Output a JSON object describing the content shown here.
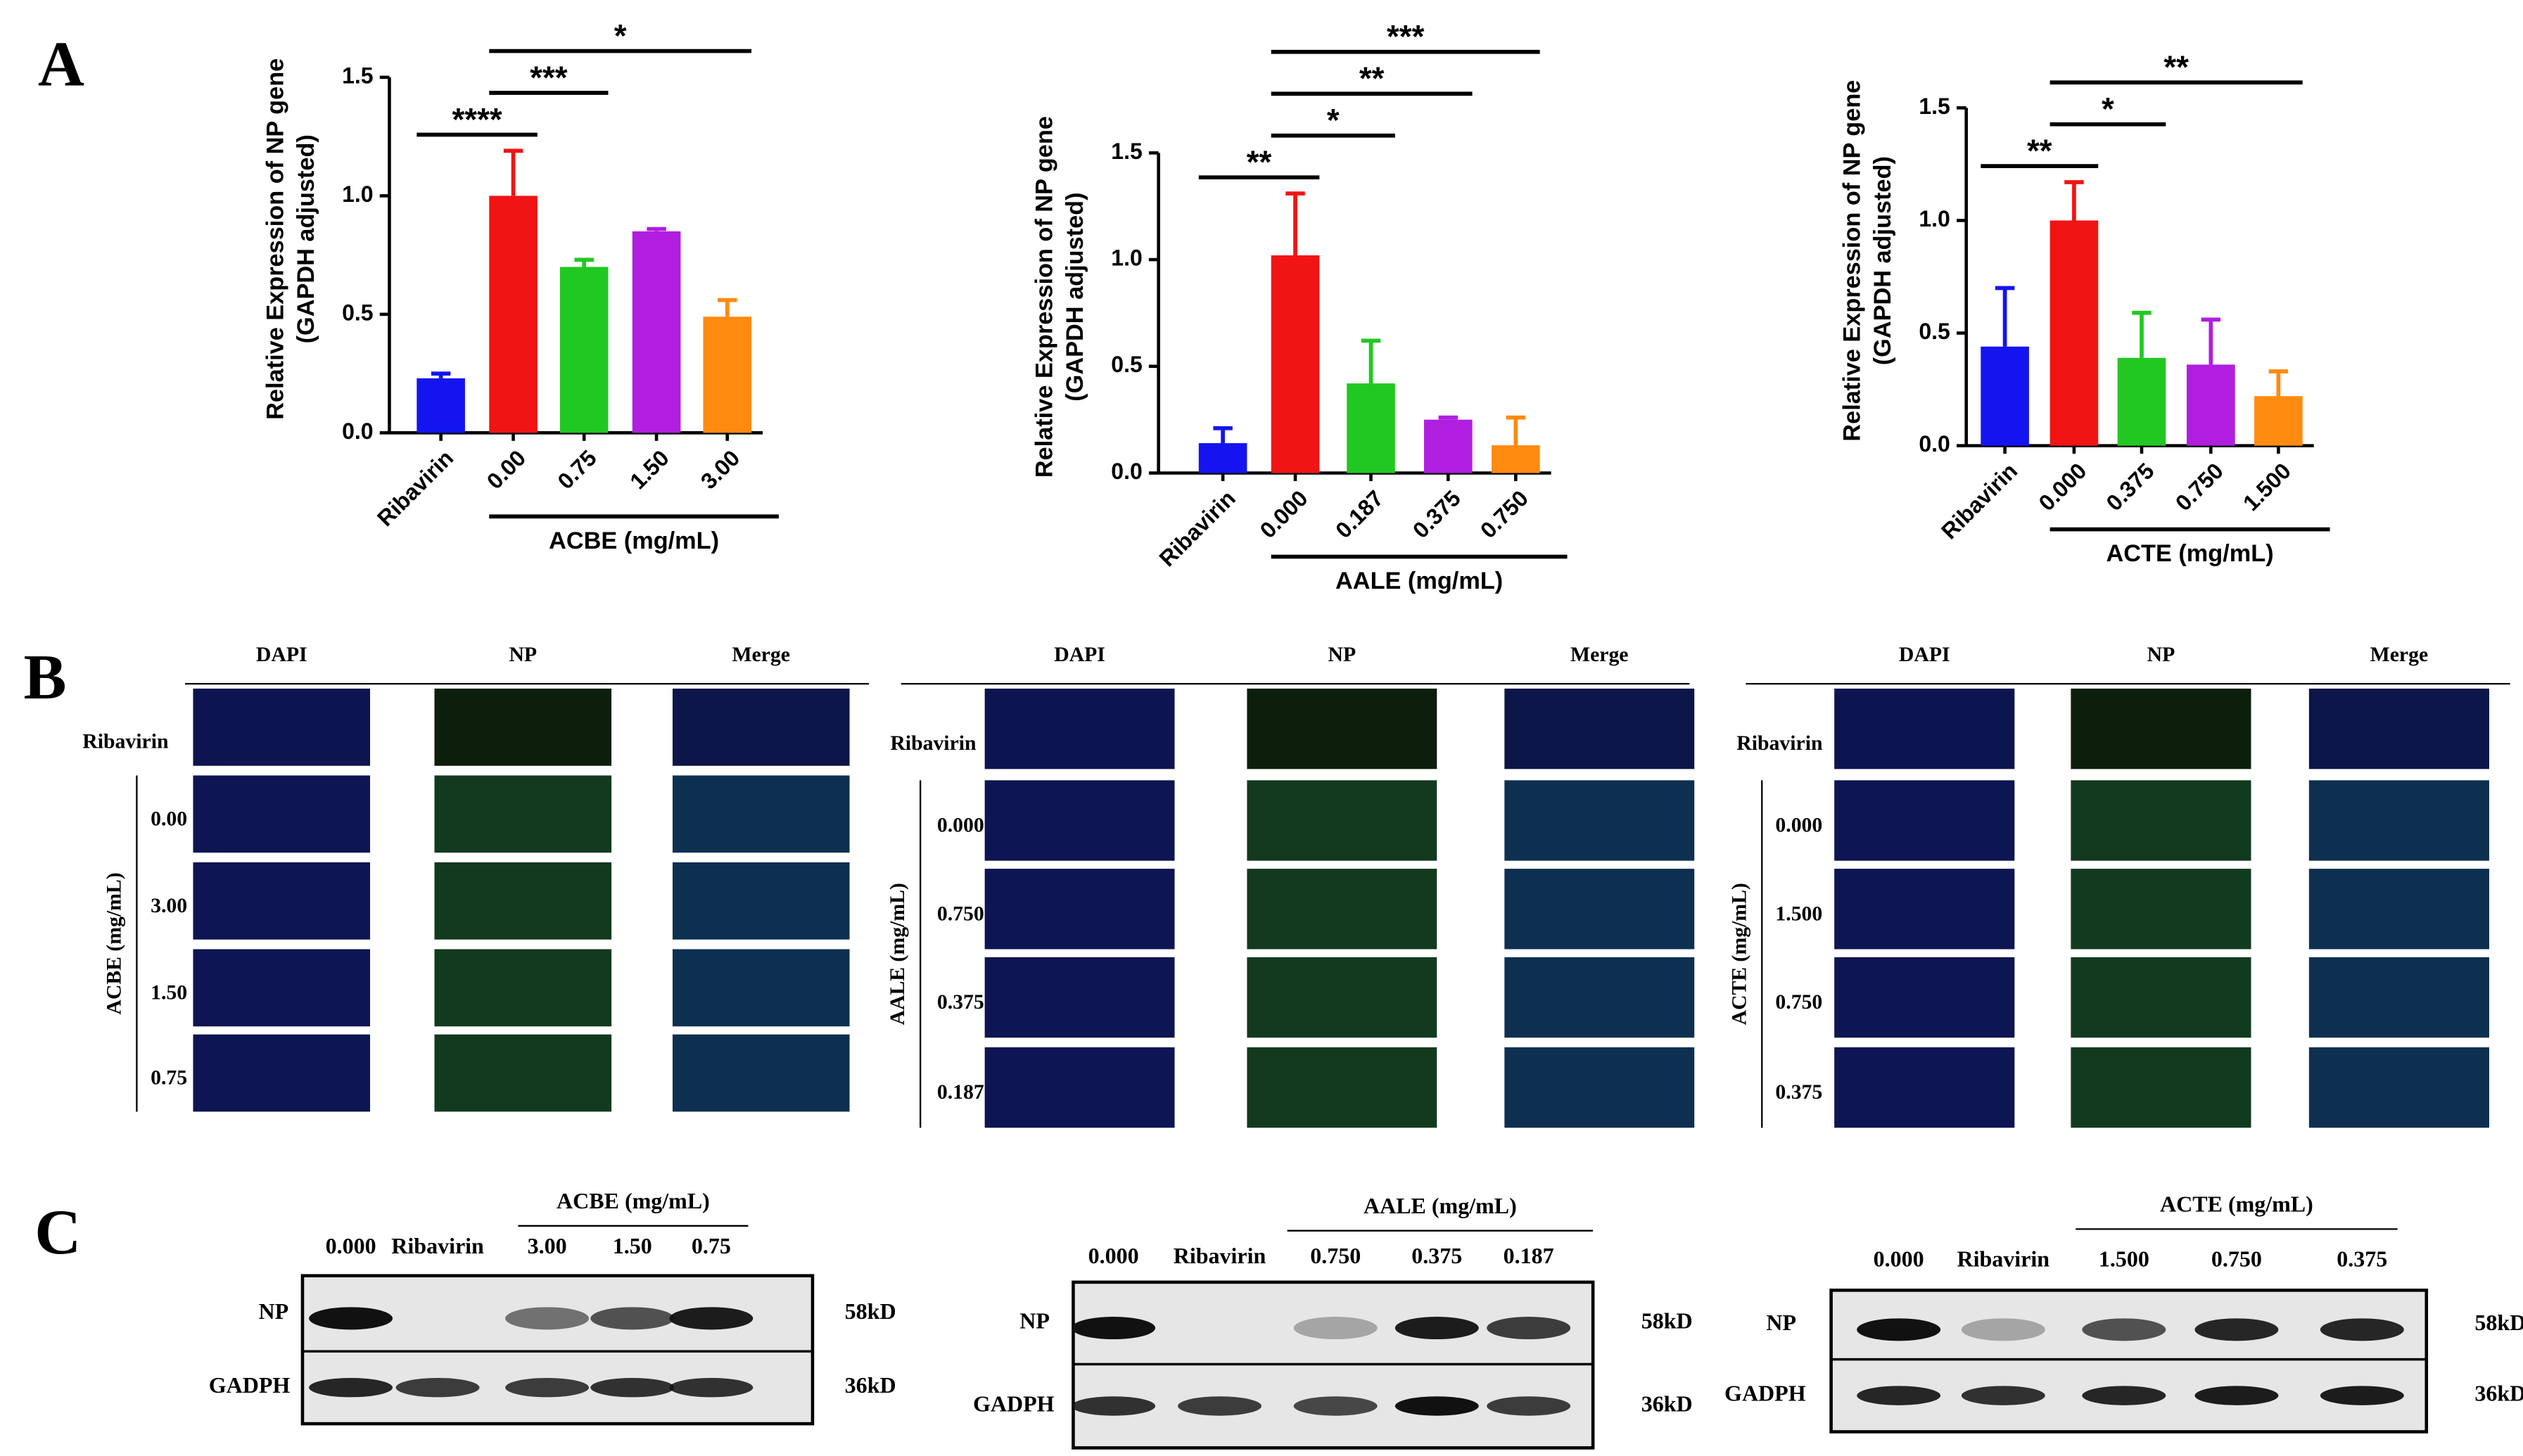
{
  "chart_data": [
    {
      "type": "bar",
      "ylabel": [
        "Relative Expression of NP gene",
        "(GAPDH adjusted)"
      ],
      "categories": [
        "Ribavirin",
        "0.00",
        "0.75",
        "1.50",
        "3.00"
      ],
      "values": [
        0.23,
        1.0,
        0.7,
        0.85,
        0.49
      ],
      "errors": [
        0.02,
        0.19,
        0.03,
        0.01,
        0.07
      ],
      "colors": [
        "#1414f0",
        "#f01414",
        "#22c822",
        "#b01ee0",
        "#ff8a10"
      ],
      "ylim": [
        0,
        1.5
      ],
      "yticks": [
        {
          "value": 0,
          "label": "0.0"
        },
        {
          "value": 0.5,
          "label": "0.5"
        },
        {
          "value": 1,
          "label": "1.0"
        },
        {
          "value": 1.5,
          "label": "1.5"
        }
      ],
      "group_label": "ACBE (mg/mL)",
      "significance": [
        {
          "label": "****",
          "from": 0,
          "to": 1
        },
        {
          "label": "***",
          "from": 1,
          "to": 2
        },
        {
          "label": "*",
          "from": 1,
          "to": 4
        }
      ]
    },
    {
      "type": "bar",
      "ylabel": [
        "Relative Expression of NP gene",
        "(GAPDH adjusted)"
      ],
      "categories": [
        "Ribavirin",
        "0.000",
        "0.187",
        "0.375",
        "0.750"
      ],
      "values": [
        0.14,
        1.02,
        0.42,
        0.25,
        0.13
      ],
      "errors": [
        0.07,
        0.29,
        0.2,
        0.01,
        0.13
      ],
      "colors": [
        "#1414f0",
        "#f01414",
        "#22c822",
        "#b01ee0",
        "#ff8a10"
      ],
      "ylim": [
        0,
        1.5
      ],
      "yticks": [
        {
          "value": 0,
          "label": "0.0"
        },
        {
          "value": 0.5,
          "label": "0.5"
        },
        {
          "value": 1,
          "label": "1.0"
        },
        {
          "value": 1.5,
          "label": "1.5"
        }
      ],
      "group_label": "AALE (mg/mL)",
      "significance": [
        {
          "label": "**",
          "from": 0,
          "to": 1
        },
        {
          "label": "*",
          "from": 1,
          "to": 2
        },
        {
          "label": "**",
          "from": 1,
          "to": 3
        },
        {
          "label": "***",
          "from": 1,
          "to": 4
        }
      ]
    },
    {
      "type": "bar",
      "ylabel": [
        "Relative Expression of NP gene",
        "(GAPDH adjusted)"
      ],
      "categories": [
        "Ribavirin",
        "0.000",
        "0.375",
        "0.750",
        "1.500"
      ],
      "values": [
        0.44,
        1.0,
        0.39,
        0.36,
        0.22
      ],
      "errors": [
        0.26,
        0.17,
        0.2,
        0.2,
        0.11
      ],
      "colors": [
        "#1414f0",
        "#f01414",
        "#22c822",
        "#b01ee0",
        "#ff8a10"
      ],
      "ylim": [
        0,
        1.5
      ],
      "yticks": [
        {
          "value": 0,
          "label": "0.0"
        },
        {
          "value": 0.5,
          "label": "0.5"
        },
        {
          "value": 1,
          "label": "1.0"
        },
        {
          "value": 1.5,
          "label": "1.5"
        }
      ],
      "group_label": "ACTE (mg/mL)",
      "significance": [
        {
          "label": "**",
          "from": 0,
          "to": 1
        },
        {
          "label": "*",
          "from": 1,
          "to": 2
        },
        {
          "label": "**",
          "from": 1,
          "to": 4
        }
      ]
    }
  ],
  "panel_labels": [
    "A",
    "B",
    "C"
  ],
  "panel_b": [
    {
      "columns": [
        "DAPI",
        "NP",
        "Merge"
      ],
      "control": "Ribavirin",
      "group_label": "ACBE (mg/mL)",
      "rows": [
        "0.00",
        "3.00",
        "1.50",
        "0.75"
      ]
    },
    {
      "columns": [
        "DAPI",
        "NP",
        "Merge"
      ],
      "control": "Ribavirin",
      "group_label": "AALE (mg/mL)",
      "rows": [
        "0.000",
        "0.750",
        "0.375",
        "0.187"
      ]
    },
    {
      "columns": [
        "DAPI",
        "NP",
        "Merge"
      ],
      "control": "Ribavirin",
      "group_label": "ACTE (mg/mL)",
      "rows": [
        "0.000",
        "1.500",
        "0.750",
        "0.375"
      ]
    }
  ],
  "panel_c": [
    {
      "group_label": "ACBE (mg/mL)",
      "lanes": [
        "0.000",
        "Ribavirin",
        "3.00",
        "1.50",
        "0.75"
      ],
      "rows": [
        "NP",
        "GADPH"
      ],
      "sizes": [
        "58kD",
        "36kD"
      ]
    },
    {
      "group_label": "AALE (mg/mL)",
      "lanes": [
        "0.000",
        "Ribavirin",
        "0.750",
        "0.375",
        "0.187"
      ],
      "rows": [
        "NP",
        "GADPH"
      ],
      "sizes": [
        "58kD",
        "36kD"
      ]
    },
    {
      "group_label": "ACTE (mg/mL)",
      "lanes": [
        "0.000",
        "Ribavirin",
        "1.500",
        "0.750",
        "0.375"
      ],
      "rows": [
        "NP",
        "GADPH"
      ],
      "sizes": [
        "58kD",
        "36kD"
      ]
    }
  ]
}
